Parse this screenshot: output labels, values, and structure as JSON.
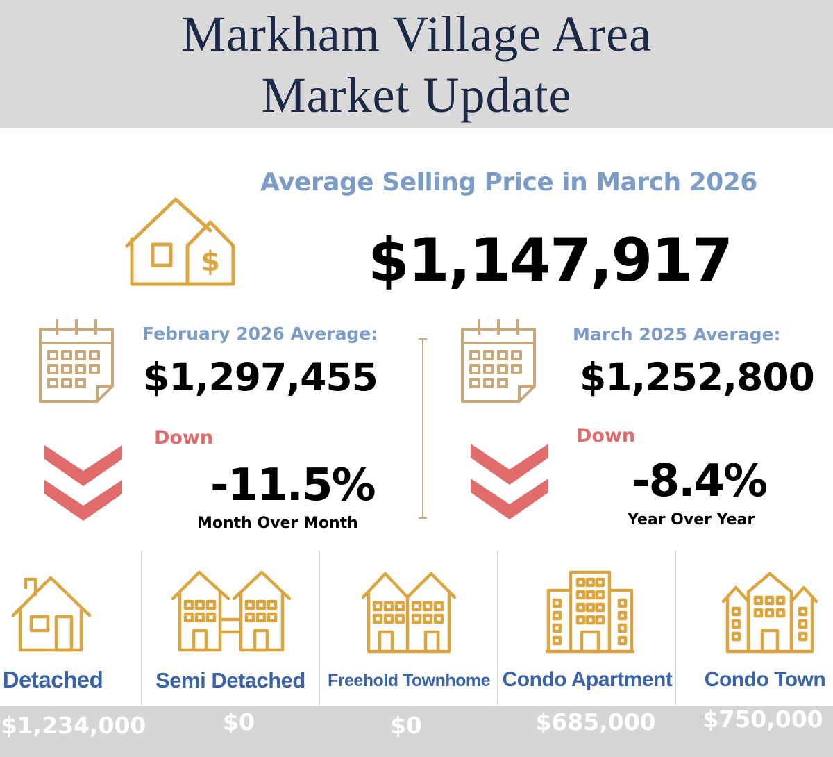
{
  "header": {
    "title_line1": "Markham Village Area",
    "title_line2": "Market Update"
  },
  "average": {
    "heading": "Average Selling Price in March 2026",
    "value": "$1,147,917"
  },
  "month_compare": {
    "label": "February 2026 Average:",
    "value": "$1,297,455",
    "direction": "Down",
    "change": "-11.5%",
    "caption": "Month Over Month"
  },
  "year_compare": {
    "label": "March 2025 Average:",
    "value": "$1,252,800",
    "direction": "Down",
    "change": "-8.4%",
    "caption": "Year Over Year"
  },
  "property_types": [
    {
      "name": "Detached",
      "price": "$1,234,000",
      "icon": "detached-house-icon"
    },
    {
      "name": "Semi Detached",
      "price": "$0",
      "icon": "semi-detached-icon"
    },
    {
      "name": "Freehold Townhome",
      "price": "$0",
      "icon": "freehold-townhome-icon"
    },
    {
      "name": "Condo Apartment",
      "price": "$685,000",
      "icon": "condo-apartment-icon"
    },
    {
      "name": "Condo Town",
      "price": "$750,000",
      "icon": "condo-town-icon"
    }
  ],
  "colors": {
    "header_bg": "#d9d9d9",
    "title": "#1c2a48",
    "accent_blue": "#7c9cc8",
    "label_blue": "#3a63a8",
    "icon_gold": "#dba640",
    "calendar_tan": "#c9a97c",
    "down_red": "#e06c6c",
    "price_bar": "#d6d6d6"
  }
}
